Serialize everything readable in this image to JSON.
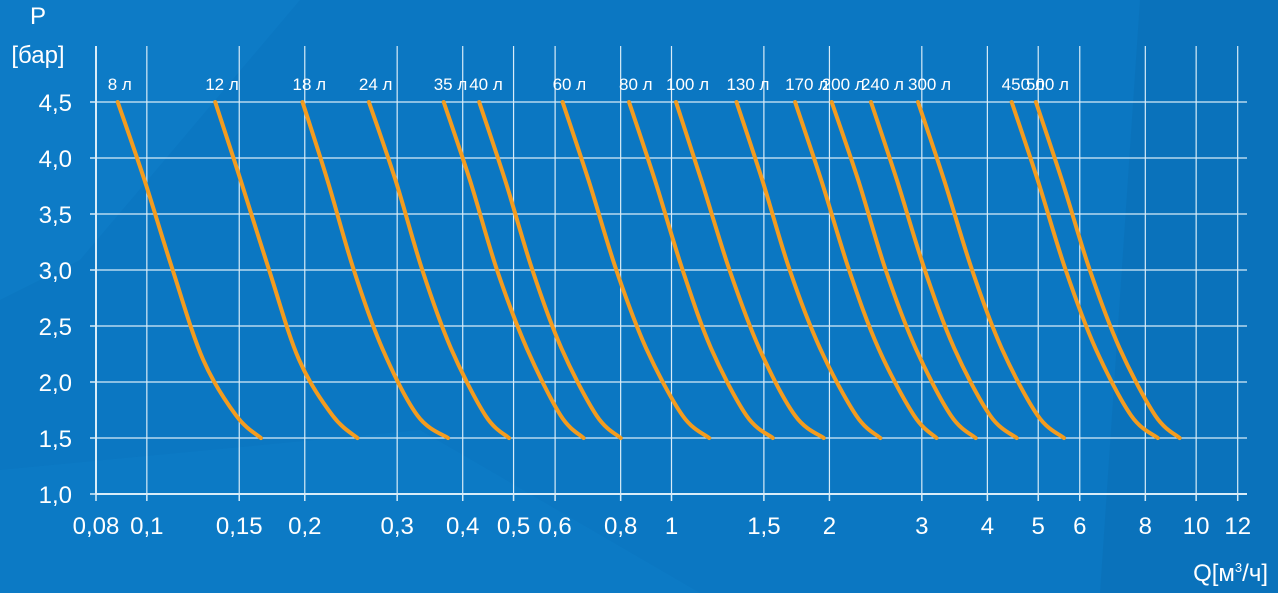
{
  "colors": {
    "background": "#0b77c2",
    "grid": "#d8ecf8",
    "curve": "#f39c1f",
    "text": "#ffffff"
  },
  "chart_data": {
    "type": "line",
    "title": "",
    "ylabel_line1": "P",
    "ylabel_line2": "[бар]",
    "xlabel_main": "Q[м",
    "xlabel_sup": "3",
    "xlabel_end": "/ч]",
    "x_scale": "log",
    "xlim": [
      0.08,
      12.5
    ],
    "ylim": [
      1.0,
      5.0
    ],
    "grid": true,
    "x_ticks": [
      {
        "value": 0.08,
        "label": "0,08"
      },
      {
        "value": 0.1,
        "label": "0,1"
      },
      {
        "value": 0.15,
        "label": "0,15"
      },
      {
        "value": 0.2,
        "label": "0,2"
      },
      {
        "value": 0.3,
        "label": "0,3"
      },
      {
        "value": 0.4,
        "label": "0,4"
      },
      {
        "value": 0.5,
        "label": "0,5"
      },
      {
        "value": 0.6,
        "label": "0,6"
      },
      {
        "value": 0.8,
        "label": "0,8"
      },
      {
        "value": 1,
        "label": "1"
      },
      {
        "value": 1.5,
        "label": "1,5"
      },
      {
        "value": 2,
        "label": "2"
      },
      {
        "value": 3,
        "label": "3"
      },
      {
        "value": 4,
        "label": "4"
      },
      {
        "value": 5,
        "label": "5"
      },
      {
        "value": 6,
        "label": "6"
      },
      {
        "value": 8,
        "label": "8"
      },
      {
        "value": 10,
        "label": "10"
      },
      {
        "value": 12,
        "label": "12"
      }
    ],
    "y_ticks": [
      {
        "value": 1.0,
        "label": "1,0"
      },
      {
        "value": 1.5,
        "label": "1,5"
      },
      {
        "value": 2.0,
        "label": "2,0"
      },
      {
        "value": 2.5,
        "label": "2,5"
      },
      {
        "value": 3.0,
        "label": "3,0"
      },
      {
        "value": 3.5,
        "label": "3,5"
      },
      {
        "value": 4.0,
        "label": "4,0"
      },
      {
        "value": 4.5,
        "label": "4,5"
      }
    ],
    "series": [
      {
        "name": "8 л",
        "points": [
          [
            0.088,
            4.5
          ],
          [
            0.099,
            3.8
          ],
          [
            0.112,
            3.0
          ],
          [
            0.128,
            2.2
          ],
          [
            0.148,
            1.7
          ],
          [
            0.165,
            1.5
          ]
        ]
      },
      {
        "name": "12 л",
        "points": [
          [
            0.135,
            4.5
          ],
          [
            0.151,
            3.8
          ],
          [
            0.171,
            3.0
          ],
          [
            0.195,
            2.2
          ],
          [
            0.226,
            1.7
          ],
          [
            0.252,
            1.5
          ]
        ]
      },
      {
        "name": "18 л",
        "points": [
          [
            0.198,
            4.5
          ],
          [
            0.221,
            3.8
          ],
          [
            0.248,
            3.0
          ],
          [
            0.281,
            2.3
          ],
          [
            0.328,
            1.7
          ],
          [
            0.375,
            1.5
          ]
        ]
      },
      {
        "name": "24 л",
        "points": [
          [
            0.265,
            4.5
          ],
          [
            0.298,
            3.8
          ],
          [
            0.335,
            3.0
          ],
          [
            0.38,
            2.3
          ],
          [
            0.442,
            1.7
          ],
          [
            0.49,
            1.5
          ]
        ]
      },
      {
        "name": "35 л",
        "points": [
          [
            0.368,
            4.5
          ],
          [
            0.413,
            3.8
          ],
          [
            0.465,
            3.0
          ],
          [
            0.53,
            2.3
          ],
          [
            0.615,
            1.7
          ],
          [
            0.68,
            1.5
          ]
        ]
      },
      {
        "name": "40 л",
        "points": [
          [
            0.43,
            4.5
          ],
          [
            0.482,
            3.8
          ],
          [
            0.543,
            3.0
          ],
          [
            0.617,
            2.3
          ],
          [
            0.72,
            1.7
          ],
          [
            0.8,
            1.5
          ]
        ]
      },
      {
        "name": "60 л",
        "points": [
          [
            0.62,
            4.5
          ],
          [
            0.695,
            3.8
          ],
          [
            0.785,
            3.0
          ],
          [
            0.895,
            2.3
          ],
          [
            1.05,
            1.7
          ],
          [
            1.18,
            1.5
          ]
        ]
      },
      {
        "name": "80 л",
        "points": [
          [
            0.83,
            4.5
          ],
          [
            0.93,
            3.8
          ],
          [
            1.05,
            3.0
          ],
          [
            1.19,
            2.3
          ],
          [
            1.39,
            1.7
          ],
          [
            1.56,
            1.5
          ]
        ]
      },
      {
        "name": "100 л",
        "points": [
          [
            1.02,
            4.5
          ],
          [
            1.14,
            3.8
          ],
          [
            1.29,
            3.0
          ],
          [
            1.47,
            2.3
          ],
          [
            1.72,
            1.7
          ],
          [
            1.95,
            1.5
          ]
        ]
      },
      {
        "name": "130 л",
        "points": [
          [
            1.33,
            4.5
          ],
          [
            1.49,
            3.8
          ],
          [
            1.68,
            3.0
          ],
          [
            1.92,
            2.3
          ],
          [
            2.25,
            1.7
          ],
          [
            2.5,
            1.5
          ]
        ]
      },
      {
        "name": "170 л",
        "points": [
          [
            1.72,
            4.5
          ],
          [
            1.93,
            3.8
          ],
          [
            2.18,
            3.0
          ],
          [
            2.48,
            2.3
          ],
          [
            2.9,
            1.7
          ],
          [
            3.2,
            1.5
          ]
        ]
      },
      {
        "name": "200 л",
        "points": [
          [
            2.02,
            4.5
          ],
          [
            2.27,
            3.8
          ],
          [
            2.56,
            3.0
          ],
          [
            2.92,
            2.3
          ],
          [
            3.41,
            1.7
          ],
          [
            3.8,
            1.5
          ]
        ]
      },
      {
        "name": "240 л",
        "points": [
          [
            2.4,
            4.5
          ],
          [
            2.69,
            3.8
          ],
          [
            3.04,
            3.0
          ],
          [
            3.46,
            2.3
          ],
          [
            4.05,
            1.7
          ],
          [
            4.55,
            1.5
          ]
        ]
      },
      {
        "name": "300 л",
        "points": [
          [
            2.95,
            4.5
          ],
          [
            3.31,
            3.8
          ],
          [
            3.74,
            3.0
          ],
          [
            4.26,
            2.3
          ],
          [
            4.99,
            1.7
          ],
          [
            5.6,
            1.5
          ]
        ]
      },
      {
        "name": "450 л",
        "points": [
          [
            4.45,
            4.5
          ],
          [
            4.99,
            3.8
          ],
          [
            5.64,
            3.0
          ],
          [
            6.43,
            2.3
          ],
          [
            7.52,
            1.7
          ],
          [
            8.45,
            1.5
          ]
        ]
      },
      {
        "name": "500 л",
        "points": [
          [
            4.95,
            4.5
          ],
          [
            5.55,
            3.8
          ],
          [
            6.27,
            3.0
          ],
          [
            7.15,
            2.3
          ],
          [
            8.36,
            1.7
          ],
          [
            9.3,
            1.5
          ]
        ]
      }
    ]
  }
}
